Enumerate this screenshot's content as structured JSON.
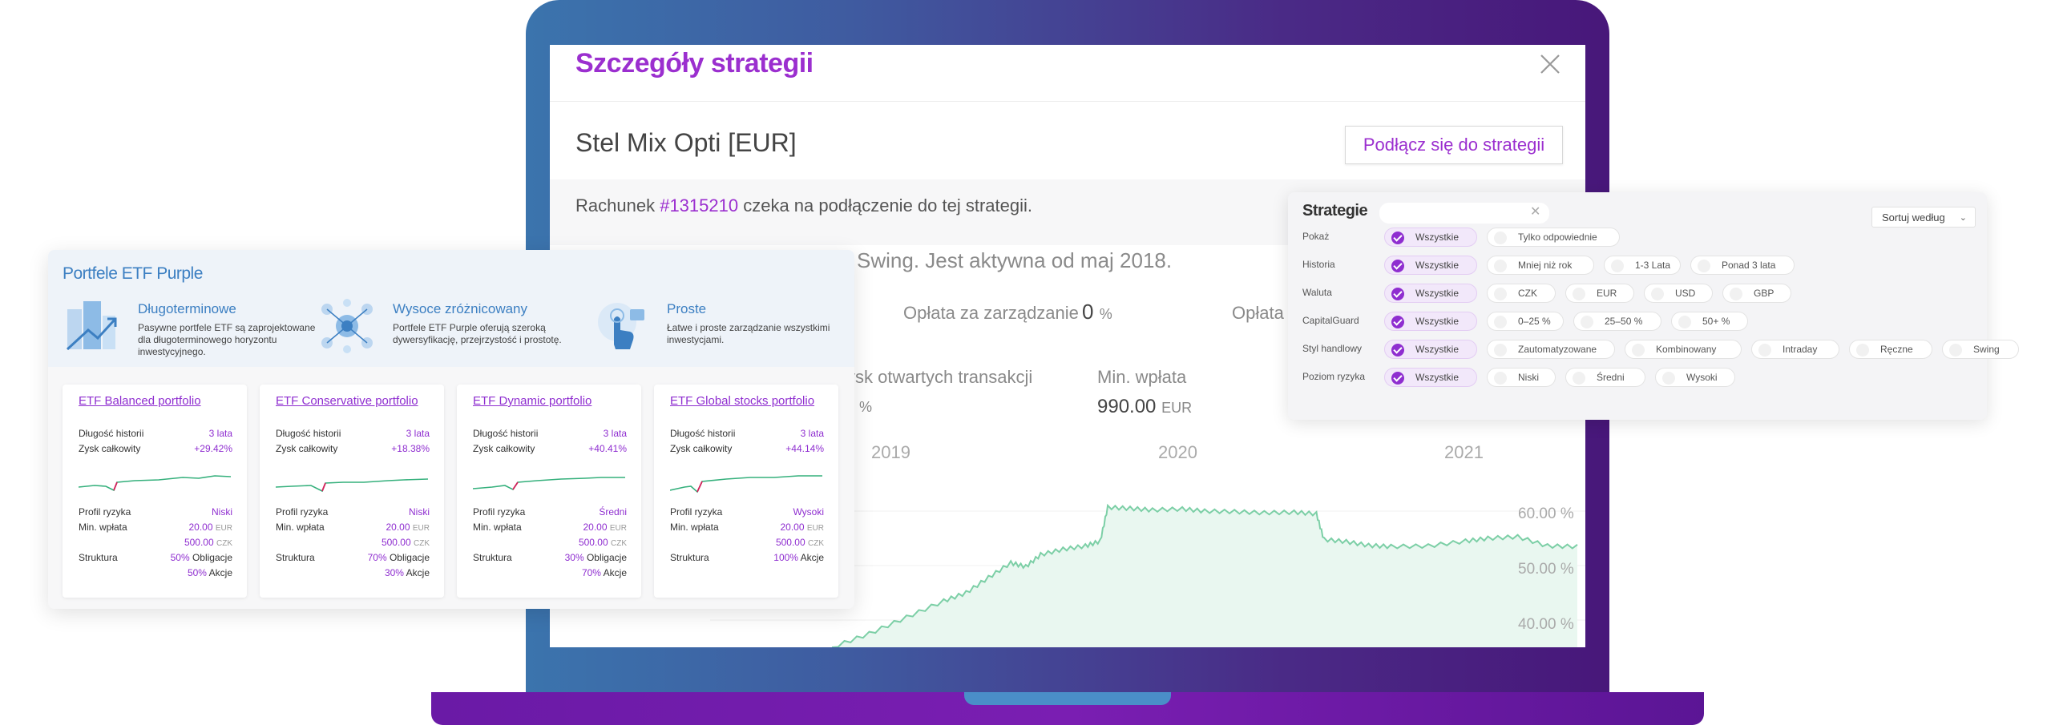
{
  "modal": {
    "title": "Szczegóły strategii",
    "strategy_name": "Stel Mix Opti [EUR]",
    "join_label": "Podłącz się do strategii",
    "account_prefix": "Rachunek",
    "account_number": "#1315210",
    "account_suffix": "czeka na podłączenie do tej strategii.",
    "description_visible": "Swing. Jest aktywna od maj 2018.",
    "stats": {
      "mgmt_fee_label": "Opłata za zarządzanie",
      "mgmt_fee_value": "0",
      "mgmt_fee_unit": "%",
      "fee2_label": "Opłata",
      "open_trades_label": "ysk otwartych transakcji",
      "open_trades_unit": "%",
      "min_deposit_label": "Min. wpłata",
      "min_deposit_value": "990.00",
      "min_deposit_unit": "EUR"
    }
  },
  "chart_data": {
    "type": "area",
    "x_ticks": [
      "2019",
      "2020",
      "2021"
    ],
    "y_ticks": [
      "60.00 %",
      "50.00 %",
      "40.00 %"
    ],
    "ylim": [
      35,
      65
    ],
    "color": "#7ccfa6",
    "points": [
      [
        0.0,
        35.0
      ],
      [
        0.05,
        37.5
      ],
      [
        0.1,
        40.5
      ],
      [
        0.15,
        43.5
      ],
      [
        0.18,
        45.0
      ],
      [
        0.21,
        47.8
      ],
      [
        0.24,
        50.5
      ],
      [
        0.26,
        49.8
      ],
      [
        0.28,
        52.0
      ],
      [
        0.31,
        53.0
      ],
      [
        0.34,
        53.6
      ],
      [
        0.36,
        54.5
      ],
      [
        0.37,
        60.7
      ],
      [
        0.4,
        60.5
      ],
      [
        0.43,
        60.2
      ],
      [
        0.47,
        60.4
      ],
      [
        0.5,
        60.0
      ],
      [
        0.54,
        59.9
      ],
      [
        0.58,
        59.7
      ],
      [
        0.62,
        59.8
      ],
      [
        0.65,
        59.5
      ],
      [
        0.66,
        54.8
      ],
      [
        0.69,
        54.4
      ],
      [
        0.72,
        53.7
      ],
      [
        0.75,
        53.5
      ],
      [
        0.8,
        53.6
      ],
      [
        0.85,
        54.5
      ],
      [
        0.88,
        55.0
      ],
      [
        0.92,
        55.3
      ],
      [
        0.96,
        53.6
      ],
      [
        1.0,
        53.5
      ]
    ]
  },
  "filters": {
    "title": "Strategie",
    "search_value": "",
    "sort_label": "Sortuj według",
    "rows": [
      {
        "label": "Pokaż",
        "options": [
          "Wszystkie",
          "Tylko odpowiednie"
        ]
      },
      {
        "label": "Historia",
        "options": [
          "Wszystkie",
          "Mniej niż rok",
          "1-3 Lata",
          "Ponad 3 lata"
        ]
      },
      {
        "label": "Waluta",
        "options": [
          "Wszystkie",
          "CZK",
          "EUR",
          "USD",
          "GBP"
        ]
      },
      {
        "label": "CapitalGuard",
        "options": [
          "Wszystkie",
          "0–25 %",
          "25–50 %",
          "50+ %"
        ]
      },
      {
        "label": "Styl handlowy",
        "options": [
          "Wszystkie",
          "Zautomatyzowane",
          "Kombinowany",
          "Intraday",
          "Ręczne",
          "Swing"
        ]
      },
      {
        "label": "Poziom ryzyka",
        "options": [
          "Wszystkie",
          "Niski",
          "Średni",
          "Wysoki"
        ]
      }
    ]
  },
  "etf": {
    "title": "Portfele ETF Purple",
    "features": [
      {
        "title": "Długoterminowe",
        "desc": "Pasywne portfele ETF są zaprojektowane dla długoterminowego horyzontu inwestycyjnego."
      },
      {
        "title": "Wysoce zróżnicowany",
        "desc": "Portfele ETF Purple oferują szeroką dywersyfikację, przejrzystość i prostotę."
      },
      {
        "title": "Proste",
        "desc": "Łatwe i proste zarządzanie wszystkimi inwestycjami."
      }
    ],
    "labels": {
      "history": "Długość historii",
      "profit": "Zysk całkowity",
      "risk": "Profil ryzyka",
      "min": "Min. wpłata",
      "structure": "Struktura"
    },
    "cards": [
      {
        "title": "ETF Balanced portfolio",
        "history": "3 lata",
        "profit": "+29.42%",
        "risk": "Niski",
        "min_eur": "20.00",
        "min_czk": "500.00",
        "structure": [
          {
            "pct": "50%",
            "name": "Obligacje"
          },
          {
            "pct": "50%",
            "name": "Akcje"
          }
        ]
      },
      {
        "title": "ETF Conservative portfolio",
        "history": "3 lata",
        "profit": "+18.38%",
        "risk": "Niski",
        "min_eur": "20.00",
        "min_czk": "500.00",
        "structure": [
          {
            "pct": "70%",
            "name": "Obligacje"
          },
          {
            "pct": "30%",
            "name": "Akcje"
          }
        ]
      },
      {
        "title": "ETF Dynamic portfolio",
        "history": "3 lata",
        "profit": "+40.41%",
        "risk": "Średni",
        "min_eur": "20.00",
        "min_czk": "500.00",
        "structure": [
          {
            "pct": "30%",
            "name": "Obligacje"
          },
          {
            "pct": "70%",
            "name": "Akcje"
          }
        ]
      },
      {
        "title": "ETF Global stocks portfolio",
        "history": "3 lata",
        "profit": "+44.14%",
        "risk": "Wysoki",
        "min_eur": "20.00",
        "min_czk": "500.00",
        "structure": [
          {
            "pct": "100%",
            "name": "Akcje"
          }
        ]
      }
    ],
    "unit_eur": "EUR",
    "unit_czk": "CZK"
  }
}
